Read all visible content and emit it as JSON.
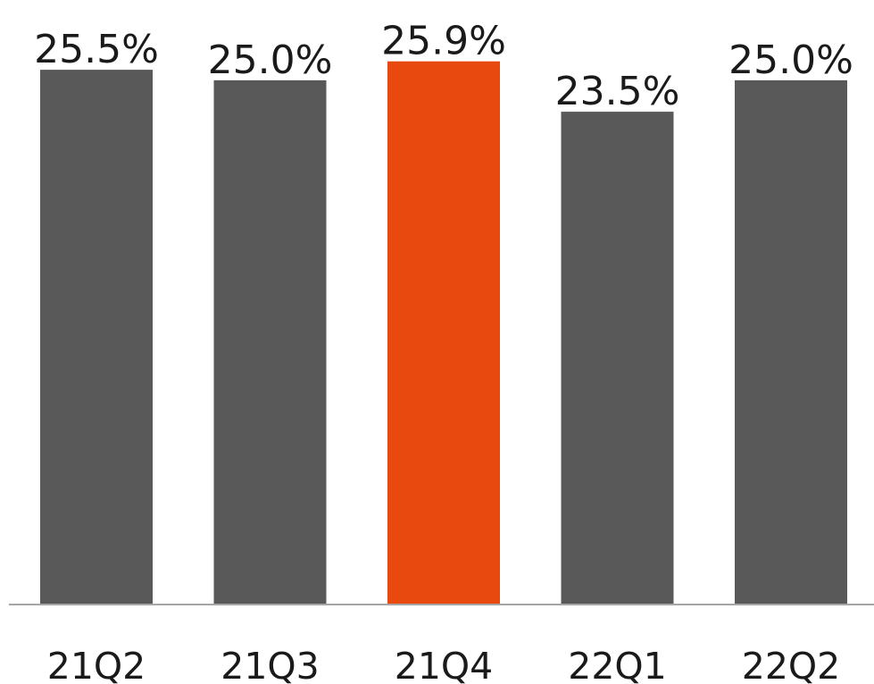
{
  "chart_data": {
    "type": "bar",
    "categories": [
      "21Q2",
      "21Q3",
      "21Q4",
      "22Q1",
      "22Q2"
    ],
    "values": [
      25.5,
      25.0,
      25.9,
      23.5,
      25.0
    ],
    "data_labels": [
      "25.5%",
      "25.0%",
      "25.9%",
      "23.5%",
      "25.0%"
    ],
    "unit": "%",
    "ylim": [
      0,
      26.4
    ],
    "grid": false,
    "legend": "none",
    "colors": {
      "default_bar": "#595959",
      "highlight_bar": "#E8490F",
      "axis_line": "#a6a6a6",
      "text": "#1a1a1a"
    },
    "highlight_category": "21Q4"
  }
}
